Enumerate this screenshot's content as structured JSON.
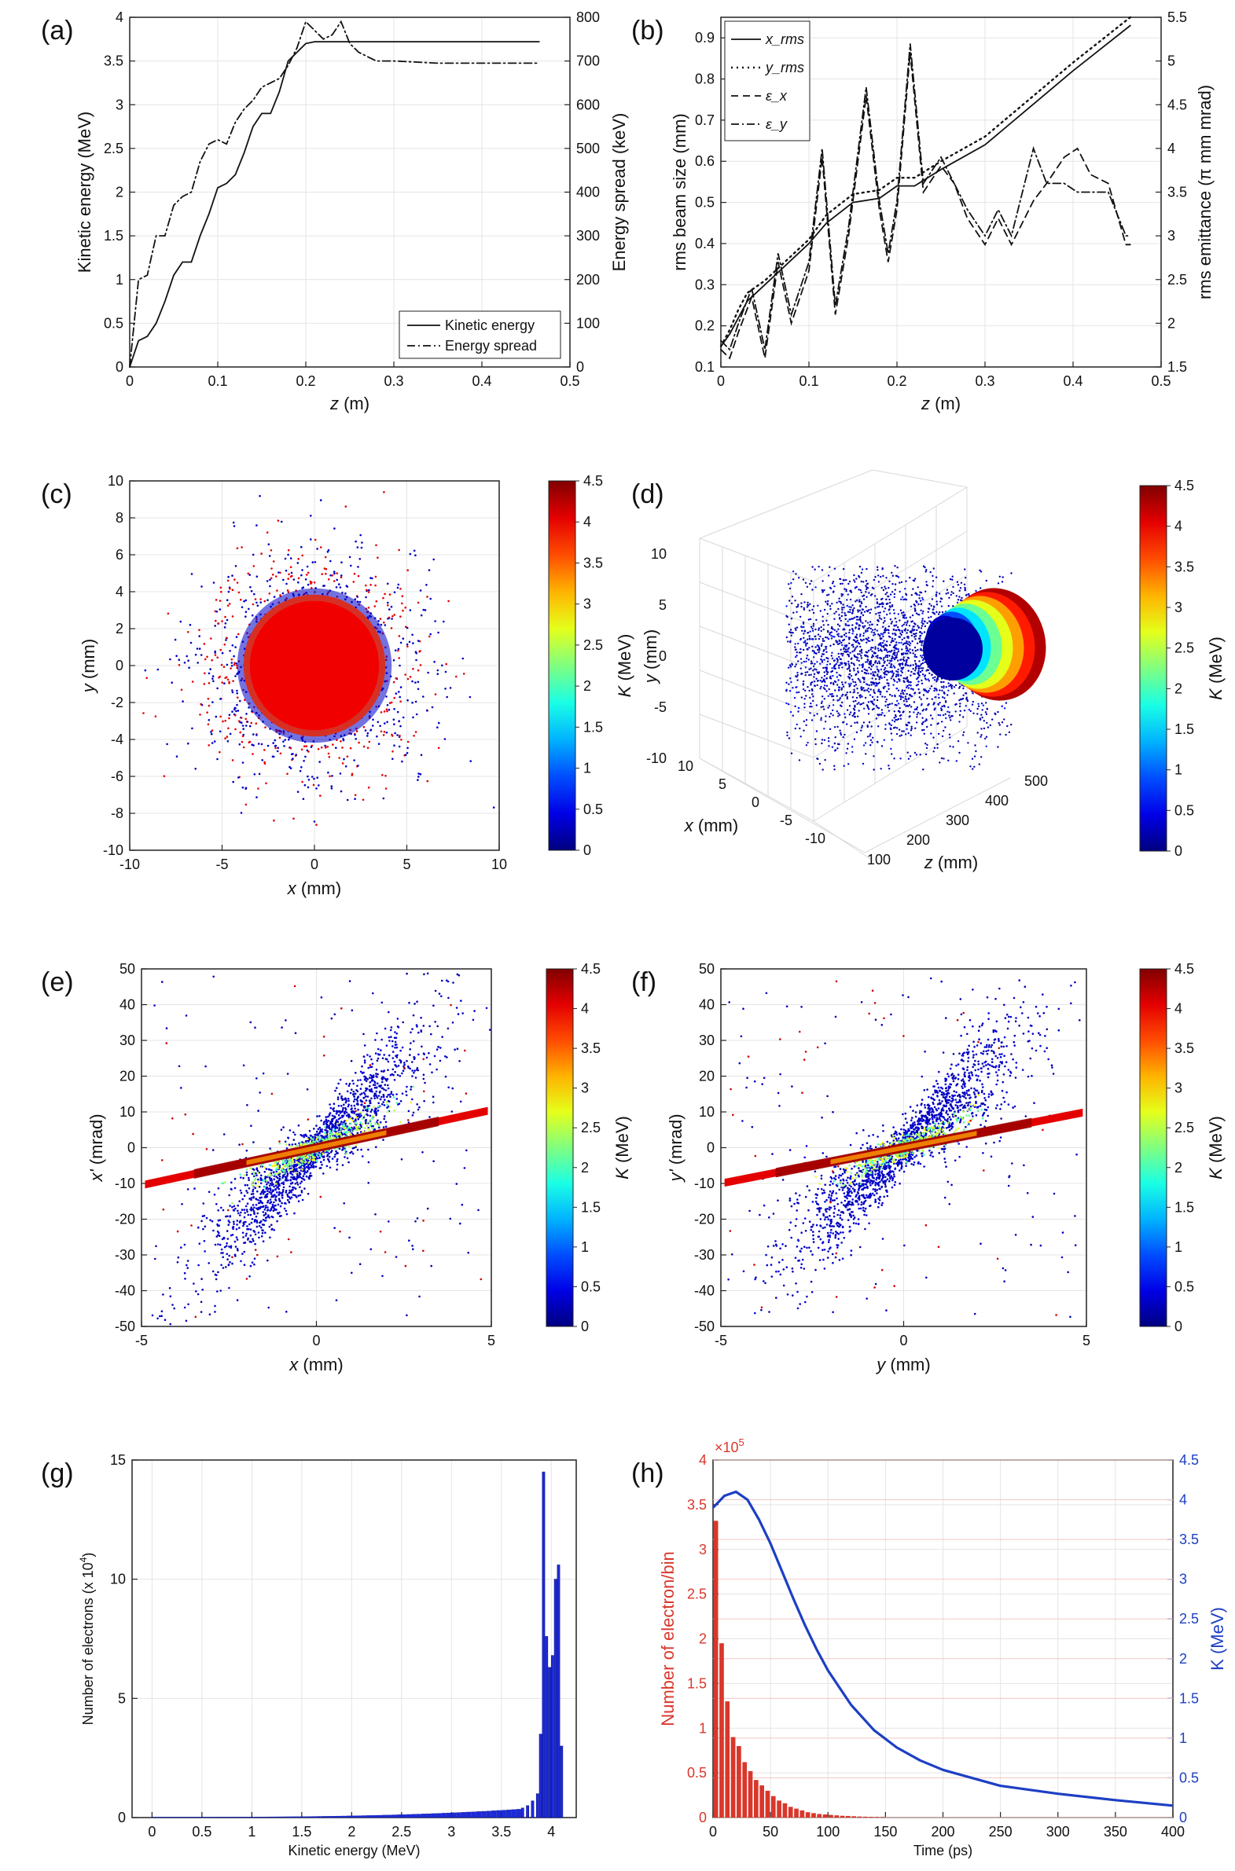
{
  "chart_data": [
    {
      "panel": "a",
      "type": "line",
      "label": "(a)",
      "xlabel_var": "z",
      "xlabel_unit": " (m)",
      "ylabel": "Kinetic energy (MeV)",
      "y2label": "Energy spread (keV)",
      "xlim": [
        0,
        0.5
      ],
      "ylim": [
        0,
        4
      ],
      "y2lim": [
        0,
        800
      ],
      "xticks": [
        "0",
        "0.1",
        "0.2",
        "0.3",
        "0.4",
        "0.5"
      ],
      "yticks": [
        "0",
        "0.5",
        "1",
        "1.5",
        "2",
        "2.5",
        "3",
        "3.5",
        "4"
      ],
      "y2ticks": [
        "0",
        "100",
        "200",
        "300",
        "400",
        "500",
        "600",
        "700",
        "800"
      ],
      "legend": [
        "Kinetic energy",
        "Energy spread"
      ],
      "legend_position": "bottom-right",
      "series": [
        {
          "name": "Kinetic energy",
          "axis": "left",
          "style": "solid",
          "x": [
            0,
            0.01,
            0.02,
            0.03,
            0.04,
            0.05,
            0.06,
            0.07,
            0.08,
            0.09,
            0.1,
            0.11,
            0.12,
            0.13,
            0.14,
            0.15,
            0.16,
            0.17,
            0.18,
            0.19,
            0.2,
            0.21,
            0.22,
            0.25,
            0.3,
            0.35,
            0.4,
            0.465
          ],
          "y": [
            0,
            0.3,
            0.35,
            0.5,
            0.75,
            1.05,
            1.2,
            1.2,
            1.5,
            1.75,
            2.05,
            2.1,
            2.2,
            2.45,
            2.75,
            2.9,
            2.9,
            3.15,
            3.5,
            3.6,
            3.7,
            3.72,
            3.72,
            3.72,
            3.72,
            3.72,
            3.72,
            3.72
          ]
        },
        {
          "name": "Energy spread",
          "axis": "right",
          "style": "dashdot",
          "x": [
            0,
            0.01,
            0.02,
            0.03,
            0.04,
            0.05,
            0.06,
            0.07,
            0.08,
            0.09,
            0.1,
            0.11,
            0.12,
            0.13,
            0.14,
            0.15,
            0.16,
            0.17,
            0.18,
            0.19,
            0.2,
            0.21,
            0.22,
            0.23,
            0.24,
            0.25,
            0.26,
            0.28,
            0.3,
            0.35,
            0.4,
            0.465
          ],
          "y": [
            0,
            200,
            210,
            300,
            300,
            370,
            390,
            400,
            470,
            510,
            520,
            510,
            560,
            590,
            610,
            640,
            650,
            660,
            690,
            730,
            790,
            770,
            750,
            760,
            790,
            740,
            720,
            700,
            700,
            695,
            695,
            695
          ]
        }
      ]
    },
    {
      "panel": "b",
      "type": "line",
      "label": "(b)",
      "xlabel_var": "z",
      "xlabel_unit": " (m)",
      "ylabel": "rms beam size (mm)",
      "y2label": "rms emittance (π mm mrad)",
      "xlim": [
        0,
        0.5
      ],
      "ylim": [
        0.1,
        0.95
      ],
      "y2lim": [
        1.5,
        5.5
      ],
      "xticks": [
        "0",
        "0.1",
        "0.2",
        "0.3",
        "0.4",
        "0.5"
      ],
      "yticks": [
        "0.1",
        "0.2",
        "0.3",
        "0.4",
        "0.5",
        "0.6",
        "0.7",
        "0.8",
        "0.9"
      ],
      "y2ticks": [
        "1.5",
        "2",
        "2.5",
        "3",
        "3.5",
        "4",
        "4.5",
        "5",
        "5.5"
      ],
      "legend": [
        "x_rms",
        "y_rms",
        "ε_x",
        "ε_y"
      ],
      "legend_position": "top-left",
      "series": [
        {
          "name": "x_rms",
          "axis": "left",
          "style": "solid",
          "x": [
            0,
            0.01,
            0.02,
            0.03,
            0.05,
            0.07,
            0.1,
            0.12,
            0.15,
            0.18,
            0.2,
            0.22,
            0.25,
            0.3,
            0.35,
            0.4,
            0.465
          ],
          "y": [
            0.15,
            0.18,
            0.22,
            0.26,
            0.3,
            0.34,
            0.4,
            0.45,
            0.5,
            0.51,
            0.54,
            0.54,
            0.58,
            0.64,
            0.73,
            0.82,
            0.93
          ]
        },
        {
          "name": "y_rms",
          "axis": "left",
          "style": "dotted",
          "x": [
            0,
            0.01,
            0.02,
            0.03,
            0.05,
            0.07,
            0.1,
            0.12,
            0.15,
            0.18,
            0.2,
            0.22,
            0.25,
            0.3,
            0.35,
            0.4,
            0.465
          ],
          "y": [
            0.15,
            0.19,
            0.24,
            0.28,
            0.31,
            0.35,
            0.41,
            0.47,
            0.52,
            0.53,
            0.56,
            0.56,
            0.6,
            0.66,
            0.75,
            0.84,
            0.95
          ]
        },
        {
          "name": "ε_x",
          "axis": "right",
          "style": "dashed",
          "x": [
            0,
            0.01,
            0.02,
            0.035,
            0.05,
            0.065,
            0.08,
            0.1,
            0.115,
            0.13,
            0.145,
            0.165,
            0.18,
            0.19,
            0.2,
            0.215,
            0.23,
            0.25,
            0.265,
            0.28,
            0.3,
            0.315,
            0.33,
            0.355,
            0.37,
            0.39,
            0.405,
            0.42,
            0.44,
            0.46,
            0.465
          ],
          "y": [
            1.7,
            1.6,
            1.9,
            2.3,
            1.6,
            2.7,
            2.0,
            2.6,
            3.9,
            2.1,
            3.0,
            4.6,
            3.3,
            2.7,
            3.3,
            5.1,
            3.5,
            3.8,
            3.6,
            3.2,
            2.9,
            3.2,
            2.9,
            3.4,
            3.6,
            3.9,
            4.0,
            3.7,
            3.6,
            2.9,
            2.9
          ]
        },
        {
          "name": "ε_y",
          "axis": "right",
          "style": "dashdot",
          "x": [
            0,
            0.01,
            0.02,
            0.035,
            0.05,
            0.065,
            0.08,
            0.1,
            0.115,
            0.13,
            0.145,
            0.165,
            0.18,
            0.19,
            0.2,
            0.215,
            0.23,
            0.25,
            0.265,
            0.28,
            0.3,
            0.315,
            0.33,
            0.355,
            0.37,
            0.39,
            0.405,
            0.42,
            0.44,
            0.46,
            0.465
          ],
          "y": [
            1.8,
            1.7,
            2.0,
            2.4,
            1.7,
            2.8,
            2.1,
            2.7,
            4.0,
            2.2,
            3.1,
            4.7,
            3.4,
            2.8,
            3.4,
            5.2,
            3.6,
            3.9,
            3.6,
            3.3,
            3.0,
            3.3,
            3.0,
            4.0,
            3.6,
            3.6,
            3.5,
            3.5,
            3.5,
            3.0,
            3.0
          ]
        }
      ]
    },
    {
      "panel": "c",
      "type": "scatter",
      "label": "(c)",
      "xlabel_var": "x",
      "xlabel_unit": " (mm)",
      "ylabel_var": "y",
      "ylabel_unit": " (mm)",
      "xlim": [
        -10,
        10
      ],
      "ylim": [
        -10,
        10
      ],
      "xticks": [
        "-10",
        "-5",
        "0",
        "5",
        "10"
      ],
      "yticks": [
        "-10",
        "-8",
        "-6",
        "-4",
        "-2",
        "0",
        "2",
        "4",
        "6",
        "8",
        "10"
      ],
      "colorbar_label_var": "K",
      "colorbar_label_unit": " (MeV)",
      "colorbar_range": [
        0,
        4.5
      ],
      "colorbar_ticks": [
        "0",
        "0.5",
        "1",
        "1.5",
        "2",
        "2.5",
        "3",
        "3.5",
        "4",
        "4.5"
      ],
      "core": {
        "x_center": 0,
        "y_center": 0,
        "radius_mm": 3.5,
        "K_MeV": 4.0
      },
      "halo": {
        "K_MeV": 0.3,
        "extent_mm": 9.5
      }
    },
    {
      "panel": "d",
      "type": "scatter",
      "label": "(d)",
      "xlabel_var": "x",
      "xlabel_unit": " (mm)",
      "ylabel_var": "y",
      "ylabel_unit": " (mm)",
      "zlabel_var": "z",
      "zlabel_unit": " (mm)",
      "xticks": [
        "10",
        "5",
        "0",
        "-5",
        "-10"
      ],
      "yticks": [
        "-10",
        "-5",
        "0",
        "5",
        "10"
      ],
      "zticks": [
        "100",
        "200",
        "300",
        "400",
        "500"
      ],
      "colorbar_label_var": "K",
      "colorbar_label_unit": " (MeV)",
      "colorbar_range": [
        0,
        4.5
      ],
      "colorbar_ticks": [
        "0",
        "0.5",
        "1",
        "1.5",
        "2",
        "2.5",
        "3",
        "3.5",
        "4",
        "4.5"
      ]
    },
    {
      "panel": "e",
      "type": "scatter",
      "label": "(e)",
      "xlabel_var": "x",
      "xlabel_unit": " (mm)",
      "ylabel_var": "x'",
      "ylabel_unit": " (mrad)",
      "xlim": [
        -5,
        5
      ],
      "ylim": [
        -50,
        50
      ],
      "xticks": [
        "-5",
        "0",
        "5"
      ],
      "yticks": [
        "-50",
        "-40",
        "-30",
        "-20",
        "-10",
        "0",
        "10",
        "20",
        "30",
        "40",
        "50"
      ],
      "colorbar_label_var": "K",
      "colorbar_label_unit": " (MeV)",
      "colorbar_range": [
        0,
        4.5
      ],
      "colorbar_ticks": [
        "0",
        "0.5",
        "1",
        "1.5",
        "2",
        "2.5",
        "3",
        "3.5",
        "4",
        "4.5"
      ],
      "high_energy_slope_mrad_per_mm": 2.1,
      "low_energy_slope_mrad_per_mm": 9.5
    },
    {
      "panel": "f",
      "type": "scatter",
      "label": "(f)",
      "xlabel_var": "y",
      "xlabel_unit": " (mm)",
      "ylabel_var": "y'",
      "ylabel_unit": " (mrad)",
      "xlim": [
        -5,
        5
      ],
      "ylim": [
        -50,
        50
      ],
      "xticks": [
        "-5",
        "0",
        "5"
      ],
      "yticks": [
        "-50",
        "-40",
        "-30",
        "-20",
        "-10",
        "0",
        "10",
        "20",
        "30",
        "40",
        "50"
      ],
      "colorbar_label_var": "K",
      "colorbar_label_unit": " (MeV)",
      "colorbar_range": [
        0,
        4.5
      ],
      "colorbar_ticks": [
        "0",
        "0.5",
        "1",
        "1.5",
        "2",
        "2.5",
        "3",
        "3.5",
        "4",
        "4.5"
      ],
      "high_energy_slope_mrad_per_mm": 2.0,
      "low_energy_slope_mrad_per_mm": 9.3
    },
    {
      "panel": "g",
      "type": "bar",
      "label": "(g)",
      "xlabel": "Kinetic energy (MeV)",
      "ylabel_pre": "Number of electrons (x 10",
      "ylabel_exp": "4",
      "ylabel_post": ")",
      "xlim": [
        -0.2,
        4.25
      ],
      "ylim": [
        0,
        15
      ],
      "xticks": [
        "0",
        "0.5",
        "1",
        "1.5",
        "2",
        "2.5",
        "3",
        "3.5",
        "4"
      ],
      "yticks": [
        "0",
        "5",
        "10",
        "15"
      ],
      "bins": {
        "x": [
          3.7,
          3.75,
          3.8,
          3.85,
          3.88,
          3.91,
          3.94,
          3.97,
          4.0,
          4.03,
          4.06,
          4.09
        ],
        "y": [
          0.4,
          0.5,
          0.7,
          1.0,
          3.5,
          14.5,
          7.6,
          6.3,
          6.8,
          10.0,
          10.6,
          3.0
        ]
      },
      "tail": {
        "start": 0,
        "end": 3.65,
        "low": 0.02,
        "high": 0.35
      }
    },
    {
      "panel": "h",
      "type": "bar",
      "label": "(h)",
      "xlabel": "Time (ps)",
      "ylabel": "Number of electron/bin",
      "y2label": "K (MeV)",
      "multiplier_pre": "×10",
      "multiplier_exp": "5",
      "xlim": [
        0,
        400
      ],
      "ylim": [
        0,
        4
      ],
      "y2lim": [
        0,
        4.5
      ],
      "xticks": [
        "0",
        "50",
        "100",
        "150",
        "200",
        "250",
        "300",
        "350",
        "400"
      ],
      "yticks": [
        "0",
        "0.5",
        "1",
        "1.5",
        "2",
        "2.5",
        "3",
        "3.5",
        "4"
      ],
      "y2ticks": [
        "0",
        "0.5",
        "1",
        "1.5",
        "2",
        "2.5",
        "3",
        "3.5",
        "4",
        "4.5"
      ],
      "colors": {
        "left": "#d9372b",
        "right": "#1d3fc4"
      },
      "bars": {
        "x": [
          2.5,
          7.5,
          12.5,
          17.5,
          22.5,
          27.5,
          32.5,
          37.5,
          42.5,
          47.5,
          52.5,
          57.5,
          62.5,
          67.5,
          72.5,
          77.5,
          82.5,
          87.5,
          92.5,
          97.5,
          102.5,
          107.5,
          112.5,
          117.5,
          122.5,
          127.5,
          132.5,
          137.5,
          142.5,
          147.5
        ],
        "y": [
          3.32,
          1.95,
          1.3,
          0.9,
          0.8,
          0.62,
          0.52,
          0.42,
          0.36,
          0.3,
          0.24,
          0.19,
          0.16,
          0.12,
          0.1,
          0.08,
          0.06,
          0.05,
          0.04,
          0.035,
          0.03,
          0.025,
          0.02,
          0.018,
          0.015,
          0.012,
          0.01,
          0.008,
          0.006,
          0.005
        ]
      },
      "curve": {
        "x": [
          0,
          10,
          20,
          30,
          40,
          50,
          60,
          70,
          80,
          90,
          100,
          120,
          140,
          160,
          180,
          200,
          250,
          300,
          350,
          400
        ],
        "y": [
          3.9,
          4.05,
          4.1,
          4.0,
          3.75,
          3.45,
          3.1,
          2.75,
          2.42,
          2.12,
          1.85,
          1.42,
          1.1,
          0.88,
          0.72,
          0.6,
          0.4,
          0.3,
          0.22,
          0.15
        ]
      }
    }
  ]
}
